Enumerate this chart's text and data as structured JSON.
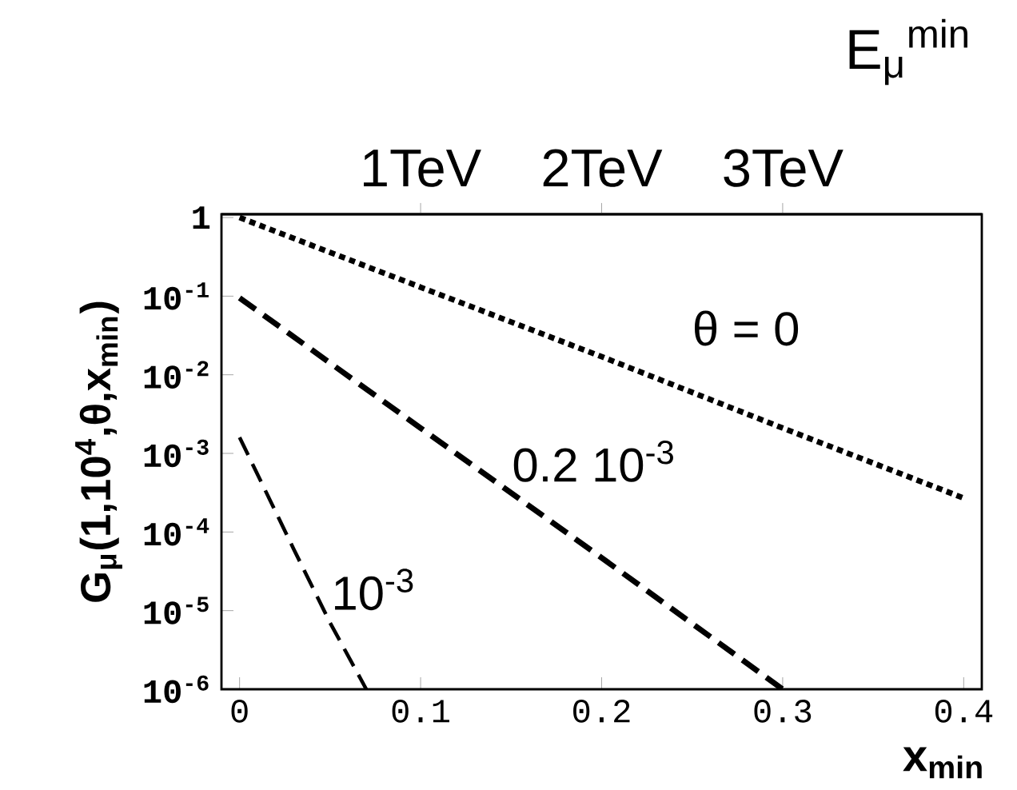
{
  "chart_data": {
    "type": "line",
    "xlabel": "x$_{min}$",
    "ylabel": "G$_{μ}$(1,10$^{4}$,θ,x$_{min}$)",
    "x2label": "E$_{μ}$$^{min}$",
    "log": "y",
    "xlim": [
      -0.01,
      0.41
    ],
    "xticks": [
      0,
      0.1,
      0.2,
      0.3,
      0.4
    ],
    "x2lim": [
      -0.1,
      4.1
    ],
    "x2ticks": [
      {
        "value": 1,
        "label": "1TeV"
      },
      {
        "value": 2,
        "label": "2TeV"
      },
      {
        "value": 3,
        "label": "3TeV"
      }
    ],
    "ylim": [
      1e-06,
      1.1
    ],
    "yticks": [
      1,
      {
        "value": 0.1,
        "label": "10$^{-1}$"
      },
      {
        "value": 0.01,
        "label": "10$^{-2}$"
      },
      {
        "value": 0.001,
        "label": "10$^{-3}$"
      },
      {
        "value": 0.0001,
        "label": "10$^{-4}$"
      },
      {
        "value": 1e-05,
        "label": "10$^{-5}$"
      },
      {
        "value": 1e-06,
        "label": "10$^{-6}$"
      }
    ],
    "series": [
      {
        "color": "#000000",
        "line_style": "dotted",
        "x": [
          0,
          0.1,
          0.2,
          0.3,
          0.4
        ],
        "values": [
          1,
          0.13,
          0.017,
          0.0021,
          0.00027
        ]
      },
      {
        "color": "#000000",
        "line_style": "dashed",
        "x": [
          0,
          0.1,
          0.2,
          0.3
        ],
        "values": [
          0.095,
          0.0021,
          4.7e-05,
          1e-06
        ]
      },
      {
        "color": "#000000",
        "line_style": "dashed",
        "x": [
          0,
          0.03,
          0.05,
          0.07
        ],
        "values": [
          0.0016,
          6e-05,
          7e-06,
          1e-06
        ]
      }
    ],
    "annotations": [
      "θ = 0",
      "0.2 10$^{-3}$",
      "10$^{-3}$"
    ]
  }
}
